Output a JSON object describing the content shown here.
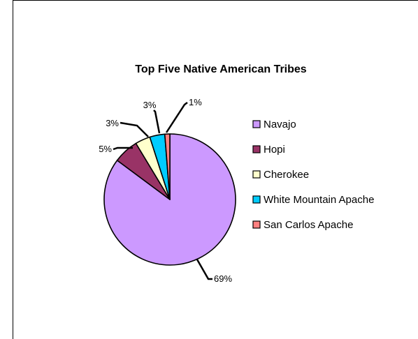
{
  "chart_data": {
    "type": "pie",
    "title": "Top Five Native American Tribes",
    "categories": [
      "Navajo",
      "Hopi",
      "Cherokee",
      "White Mountain Apache",
      "San Carlos Apache"
    ],
    "values": [
      69,
      5,
      3,
      3,
      1
    ],
    "data_labels": [
      "69%",
      "5%",
      "3%",
      "3%",
      "1%"
    ],
    "colors": [
      "#CC99FF",
      "#993366",
      "#FFFFCC",
      "#00CCFF",
      "#FF8080"
    ],
    "legend_position": "right",
    "grid": false
  }
}
